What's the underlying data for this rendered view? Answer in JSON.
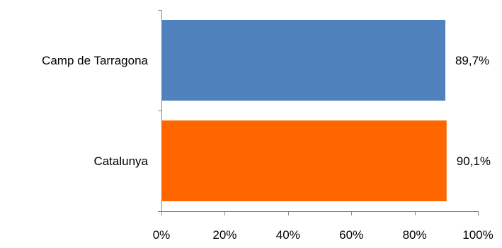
{
  "chart_data": {
    "type": "bar",
    "orientation": "horizontal",
    "categories": [
      "Camp de Tarragona",
      "Catalunya"
    ],
    "values": [
      89.7,
      90.1
    ],
    "value_labels": [
      "89,7%",
      "90,1%"
    ],
    "bar_colors": [
      "#4f81bd",
      "#ff6600"
    ],
    "axis_color": "#868686",
    "title": "",
    "xlabel": "",
    "ylabel": "",
    "xlim": [
      0,
      100
    ],
    "x_ticks": [
      0,
      20,
      40,
      60,
      80,
      100
    ],
    "x_tick_labels": [
      "0%",
      "20%",
      "40%",
      "60%",
      "80%",
      "100%"
    ],
    "grid": false,
    "legend": false
  }
}
